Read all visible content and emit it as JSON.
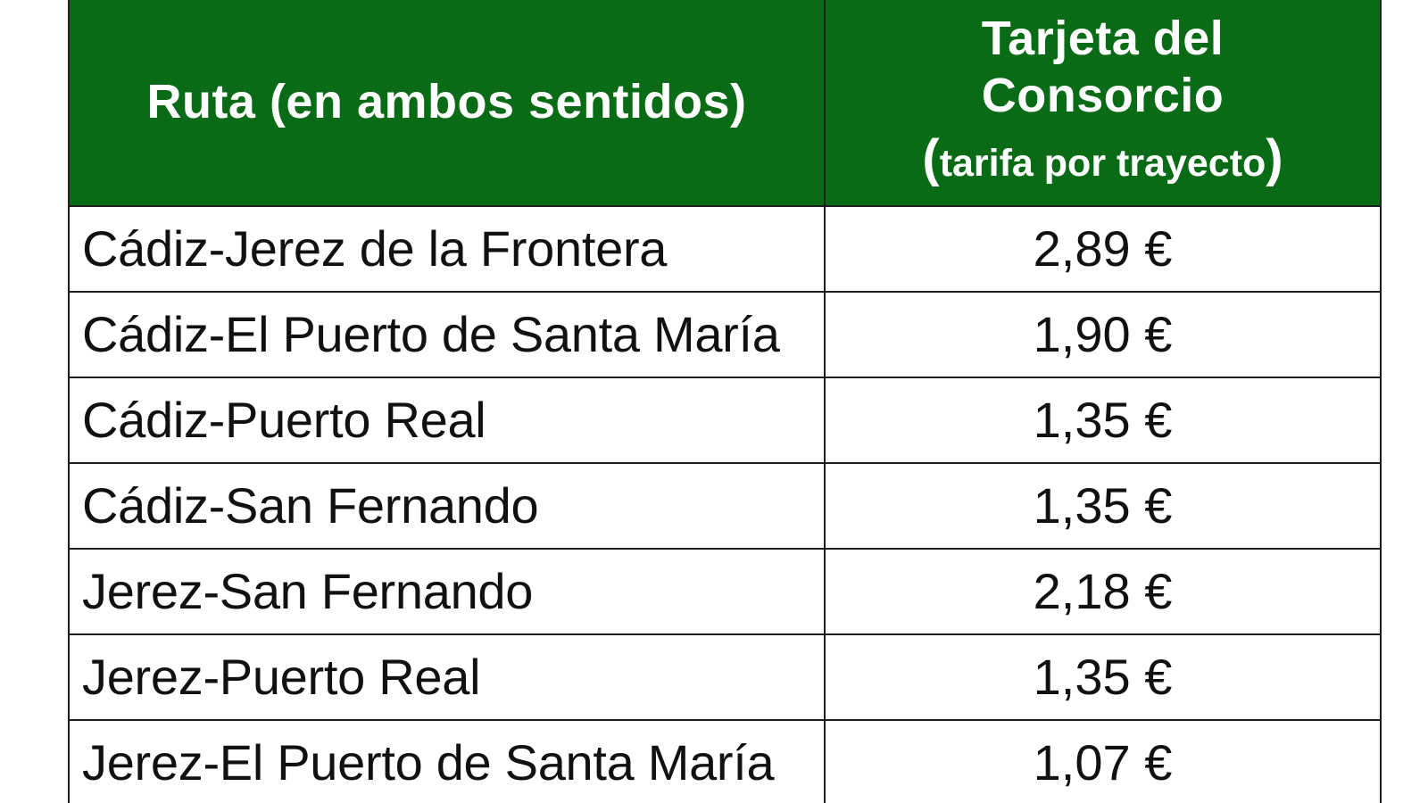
{
  "table": {
    "header": {
      "route": "Ruta (en ambos sentidos)",
      "price_line1": "Tarjeta del",
      "price_line2": "Consorcio",
      "price_open_paren": "(",
      "price_sub": "tarifa por trayecto",
      "price_close_paren": ")"
    },
    "rows": [
      {
        "route": "Cádiz-Jerez de la Frontera",
        "price": "2,89 €"
      },
      {
        "route": "Cádiz-El Puerto de Santa María",
        "price": "1,90 €"
      },
      {
        "route": "Cádiz-Puerto Real",
        "price": "1,35 €"
      },
      {
        "route": "Cádiz-San Fernando",
        "price": "1,35 €"
      },
      {
        "route": "Jerez-San Fernando",
        "price": "2,18 €"
      },
      {
        "route": "Jerez-Puerto Real",
        "price": "1,35 €"
      },
      {
        "route": "Jerez-El Puerto de Santa María",
        "price": "1,07 €"
      }
    ],
    "colors": {
      "header_background": "#0a6b17",
      "header_text": "#ffffff",
      "border": "#1f1f1f",
      "cell_text": "#111111"
    }
  }
}
